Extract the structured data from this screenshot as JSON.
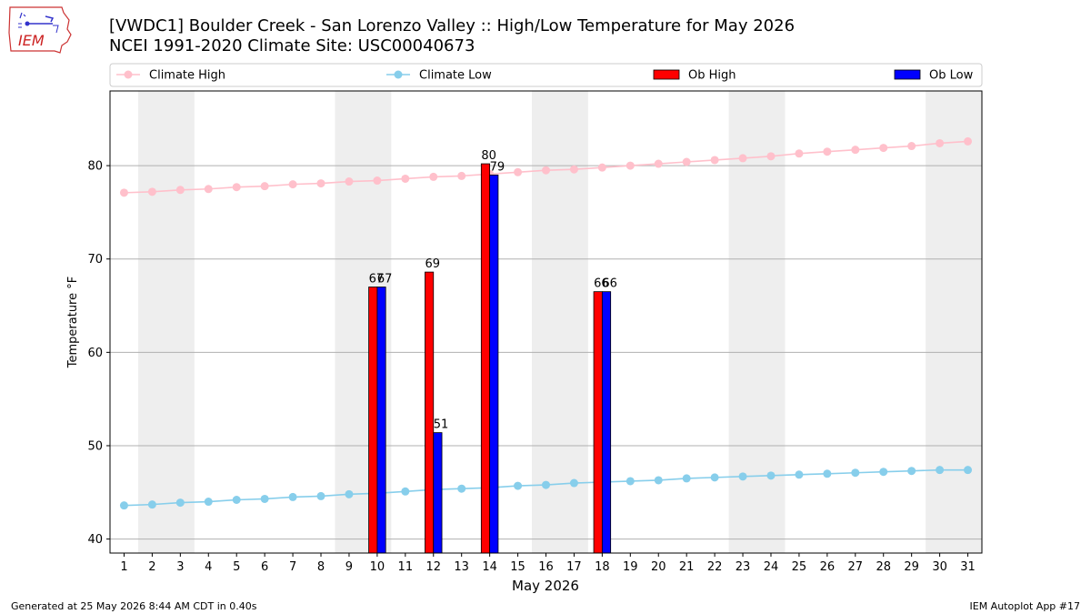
{
  "header": {
    "title_line1": "[VWDC1] Boulder Creek - San Lorenzo Valley :: High/Low Temperature for May 2026",
    "title_line2": "NCEI 1991-2020 Climate Site: USC00040673"
  },
  "logo": {
    "text": "IEM",
    "icon": "iem-logo-icon"
  },
  "footer": {
    "generated": "Generated at 25 May 2026 8:44 AM CDT in 0.40s",
    "app": "IEM Autoplot App #17"
  },
  "colors": {
    "climate_high": "#ffc0cb",
    "climate_low": "#87ceeb",
    "ob_high": "#ff0000",
    "ob_low": "#0000ff",
    "weekend_band": "#eeeeee",
    "grid": "#b0b0b0"
  },
  "chart_data": {
    "type": "bar",
    "xlabel": "May 2026",
    "ylabel": "Temperature °F",
    "xlim": [
      0.5,
      31.5
    ],
    "ylim": [
      38.5,
      88
    ],
    "yticks": [
      40,
      50,
      60,
      70,
      80
    ],
    "x": [
      1,
      2,
      3,
      4,
      5,
      6,
      7,
      8,
      9,
      10,
      11,
      12,
      13,
      14,
      15,
      16,
      17,
      18,
      19,
      20,
      21,
      22,
      23,
      24,
      25,
      26,
      27,
      28,
      29,
      30,
      31
    ],
    "weekend_bands": [
      [
        1.5,
        3.5
      ],
      [
        8.5,
        10.5
      ],
      [
        15.5,
        17.5
      ],
      [
        22.5,
        24.5
      ],
      [
        29.5,
        31.5
      ]
    ],
    "grid": "y",
    "legend": {
      "placement": "top",
      "entries": [
        "Climate High",
        "Climate Low",
        "Ob High",
        "Ob Low"
      ]
    },
    "series": [
      {
        "name": "Climate High",
        "kind": "line",
        "values": [
          77.1,
          77.2,
          77.4,
          77.5,
          77.7,
          77.8,
          78.0,
          78.1,
          78.3,
          78.4,
          78.6,
          78.8,
          78.9,
          79.1,
          79.3,
          79.5,
          79.6,
          79.8,
          80.0,
          80.2,
          80.4,
          80.6,
          80.8,
          81.0,
          81.3,
          81.5,
          81.7,
          81.9,
          82.1,
          82.4,
          82.6
        ]
      },
      {
        "name": "Climate Low",
        "kind": "line",
        "values": [
          43.6,
          43.7,
          43.9,
          44.0,
          44.2,
          44.3,
          44.5,
          44.6,
          44.8,
          44.9,
          45.1,
          45.3,
          45.4,
          45.5,
          45.7,
          45.8,
          46.0,
          46.1,
          46.2,
          46.3,
          46.5,
          46.6,
          46.7,
          46.8,
          46.9,
          47.0,
          47.1,
          47.2,
          47.3,
          47.4,
          47.4
        ]
      },
      {
        "name": "Ob High",
        "kind": "bar",
        "points": [
          {
            "x": 10,
            "value": 67,
            "label": "67"
          },
          {
            "x": 12,
            "value": 68.6,
            "label": "69"
          },
          {
            "x": 14,
            "value": 80.2,
            "label": "80"
          },
          {
            "x": 18,
            "value": 66.5,
            "label": "66"
          }
        ]
      },
      {
        "name": "Ob Low",
        "kind": "bar",
        "points": [
          {
            "x": 10,
            "value": 67,
            "label": "67"
          },
          {
            "x": 12,
            "value": 51.4,
            "label": "51"
          },
          {
            "x": 14,
            "value": 79,
            "label": "79"
          },
          {
            "x": 18,
            "value": 66.5,
            "label": "66"
          }
        ]
      }
    ]
  }
}
